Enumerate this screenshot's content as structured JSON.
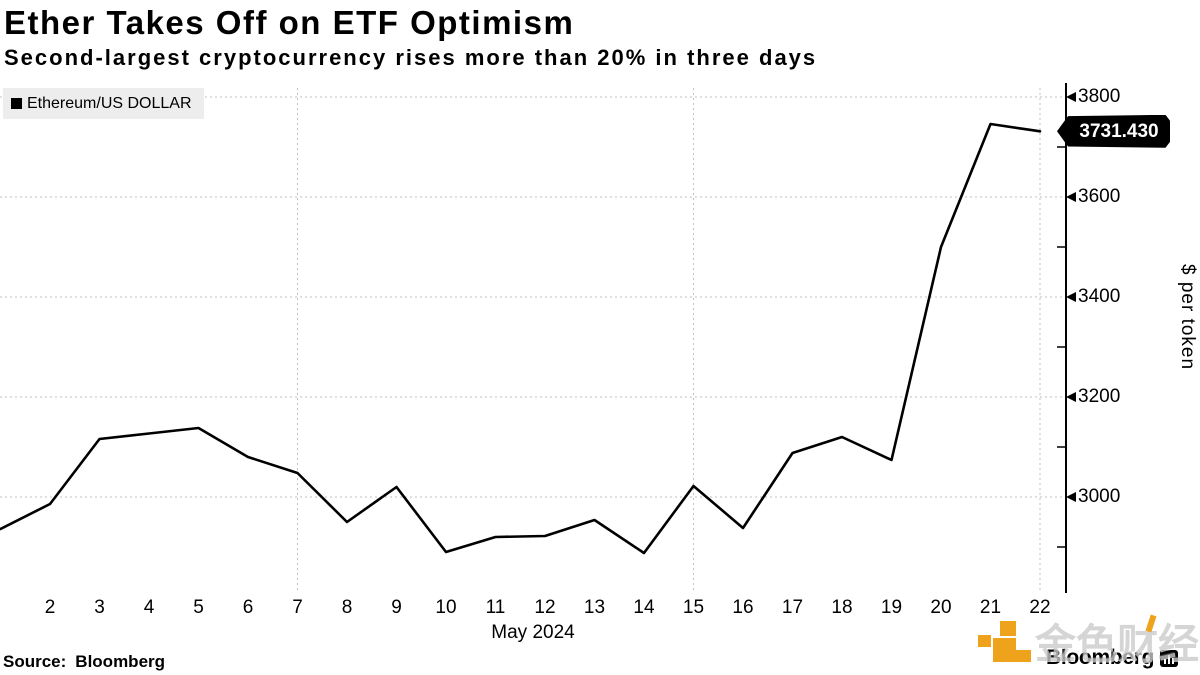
{
  "header": {
    "title": "Ether Takes Off on ETF Optimism",
    "subtitle": "Second-largest cryptocurrency rises more than 20% in three days"
  },
  "legend": {
    "series_label": "Ethereum/US DOLLAR"
  },
  "y_axis": {
    "unit_label": "$ per token",
    "last_price_label": "3731.430"
  },
  "x_axis": {
    "month_label": "May 2024"
  },
  "footer": {
    "source_prefix": "Source:",
    "source_name": "Bloomberg",
    "brand_name": "Bloomberg"
  },
  "watermark": {
    "text": "金色财经"
  },
  "chart_data": {
    "type": "line",
    "title": "Ether Takes Off on ETF Optimism",
    "subtitle": "Second-largest cryptocurrency rises more than 20% in three days",
    "xlabel": "May 2024",
    "ylabel": "$ per token",
    "series": [
      {
        "name": "Ethereum/US DOLLAR",
        "x_days": [
          1,
          2,
          3,
          4,
          5,
          6,
          7,
          8,
          9,
          10,
          11,
          12,
          13,
          14,
          15,
          16,
          17,
          18,
          19,
          20,
          21,
          22
        ],
        "values": [
          2936,
          2986,
          3116,
          3127,
          3138,
          3080,
          3048,
          2950,
          3020,
          2890,
          2920,
          2922,
          2954,
          2888,
          3022,
          2938,
          3088,
          3120,
          3074,
          3500,
          3746,
          3731.43
        ]
      }
    ],
    "last_value": 3731.43,
    "ylim": [
      2810,
      3818
    ],
    "yticks_major": [
      3000,
      3200,
      3400,
      3600,
      3800
    ],
    "yticks_minor": [
      2900,
      3100,
      3300,
      3500,
      3700
    ],
    "xtick_days": [
      2,
      3,
      4,
      5,
      6,
      7,
      8,
      9,
      10,
      11,
      12,
      13,
      14,
      15,
      16,
      17,
      18,
      19,
      20,
      21,
      22
    ],
    "x_gridline_days": [
      7,
      15,
      22
    ],
    "grid": "dashed",
    "legend_position": "top-left",
    "axis_side": "right"
  }
}
